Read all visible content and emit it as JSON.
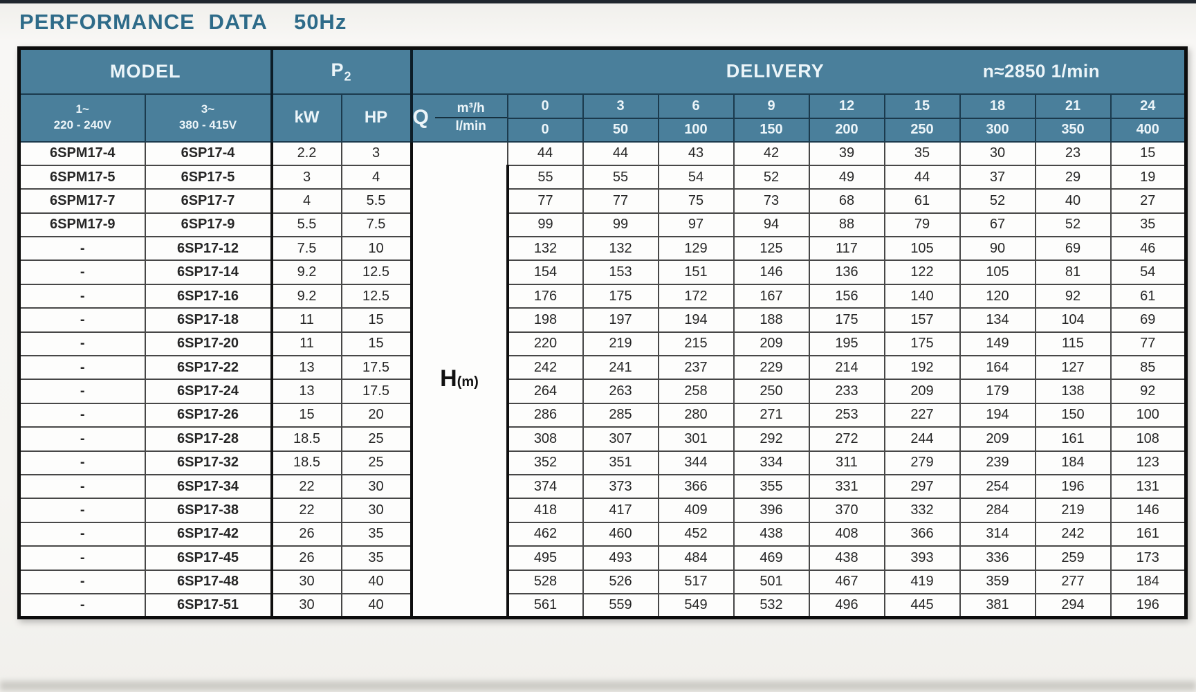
{
  "page": {
    "title": "PERFORMANCE DATA",
    "frequency": "50Hz"
  },
  "colors": {
    "header_teal": "#4a7f9b",
    "title_blue": "#2e6b89",
    "header_text": "#ecf5f9",
    "body_text": "#262626",
    "grid_dark": "#1b3a4d"
  },
  "table": {
    "headers": {
      "model": "MODEL",
      "p2": {
        "base": "P",
        "sub": "2"
      },
      "delivery": "DELIVERY",
      "speed": "n≈2850 1/min",
      "phase1": {
        "line1": "1~",
        "line2": "220 - 240V"
      },
      "phase3": {
        "line1": "3~",
        "line2": "380 - 415V"
      },
      "kw": "kW",
      "hp": "HP",
      "q": "Q",
      "q_unit_top": "m³/h",
      "q_unit_bottom": "l/min",
      "flow_m3h": [
        "0",
        "3",
        "6",
        "9",
        "12",
        "15",
        "18",
        "21",
        "24"
      ],
      "flow_lmin": [
        "0",
        "50",
        "100",
        "150",
        "200",
        "250",
        "300",
        "350",
        "400"
      ]
    },
    "h_label": "H",
    "h_unit": "(m)",
    "rows": [
      {
        "model1": "6SPM17-4",
        "model3": "6SP17-4",
        "kw": "2.2",
        "hp": "3",
        "h": [
          "44",
          "44",
          "43",
          "42",
          "39",
          "35",
          "30",
          "23",
          "15"
        ]
      },
      {
        "model1": "6SPM17-5",
        "model3": "6SP17-5",
        "kw": "3",
        "hp": "4",
        "h": [
          "55",
          "55",
          "54",
          "52",
          "49",
          "44",
          "37",
          "29",
          "19"
        ]
      },
      {
        "model1": "6SPM17-7",
        "model3": "6SP17-7",
        "kw": "4",
        "hp": "5.5",
        "h": [
          "77",
          "77",
          "75",
          "73",
          "68",
          "61",
          "52",
          "40",
          "27"
        ]
      },
      {
        "model1": "6SPM17-9",
        "model3": "6SP17-9",
        "kw": "5.5",
        "hp": "7.5",
        "h": [
          "99",
          "99",
          "97",
          "94",
          "88",
          "79",
          "67",
          "52",
          "35"
        ]
      },
      {
        "model1": "-",
        "model3": "6SP17-12",
        "kw": "7.5",
        "hp": "10",
        "h": [
          "132",
          "132",
          "129",
          "125",
          "117",
          "105",
          "90",
          "69",
          "46"
        ]
      },
      {
        "model1": "-",
        "model3": "6SP17-14",
        "kw": "9.2",
        "hp": "12.5",
        "h": [
          "154",
          "153",
          "151",
          "146",
          "136",
          "122",
          "105",
          "81",
          "54"
        ]
      },
      {
        "model1": "-",
        "model3": "6SP17-16",
        "kw": "9.2",
        "hp": "12.5",
        "h": [
          "176",
          "175",
          "172",
          "167",
          "156",
          "140",
          "120",
          "92",
          "61"
        ]
      },
      {
        "model1": "-",
        "model3": "6SP17-18",
        "kw": "11",
        "hp": "15",
        "h": [
          "198",
          "197",
          "194",
          "188",
          "175",
          "157",
          "134",
          "104",
          "69"
        ]
      },
      {
        "model1": "-",
        "model3": "6SP17-20",
        "kw": "11",
        "hp": "15",
        "h": [
          "220",
          "219",
          "215",
          "209",
          "195",
          "175",
          "149",
          "115",
          "77"
        ]
      },
      {
        "model1": "-",
        "model3": "6SP17-22",
        "kw": "13",
        "hp": "17.5",
        "h": [
          "242",
          "241",
          "237",
          "229",
          "214",
          "192",
          "164",
          "127",
          "85"
        ]
      },
      {
        "model1": "-",
        "model3": "6SP17-24",
        "kw": "13",
        "hp": "17.5",
        "h": [
          "264",
          "263",
          "258",
          "250",
          "233",
          "209",
          "179",
          "138",
          "92"
        ]
      },
      {
        "model1": "-",
        "model3": "6SP17-26",
        "kw": "15",
        "hp": "20",
        "h": [
          "286",
          "285",
          "280",
          "271",
          "253",
          "227",
          "194",
          "150",
          "100"
        ]
      },
      {
        "model1": "-",
        "model3": "6SP17-28",
        "kw": "18.5",
        "hp": "25",
        "h": [
          "308",
          "307",
          "301",
          "292",
          "272",
          "244",
          "209",
          "161",
          "108"
        ]
      },
      {
        "model1": "-",
        "model3": "6SP17-32",
        "kw": "18.5",
        "hp": "25",
        "h": [
          "352",
          "351",
          "344",
          "334",
          "311",
          "279",
          "239",
          "184",
          "123"
        ]
      },
      {
        "model1": "-",
        "model3": "6SP17-34",
        "kw": "22",
        "hp": "30",
        "h": [
          "374",
          "373",
          "366",
          "355",
          "331",
          "297",
          "254",
          "196",
          "131"
        ]
      },
      {
        "model1": "-",
        "model3": "6SP17-38",
        "kw": "22",
        "hp": "30",
        "h": [
          "418",
          "417",
          "409",
          "396",
          "370",
          "332",
          "284",
          "219",
          "146"
        ]
      },
      {
        "model1": "-",
        "model3": "6SP17-42",
        "kw": "26",
        "hp": "35",
        "h": [
          "462",
          "460",
          "452",
          "438",
          "408",
          "366",
          "314",
          "242",
          "161"
        ]
      },
      {
        "model1": "-",
        "model3": "6SP17-45",
        "kw": "26",
        "hp": "35",
        "h": [
          "495",
          "493",
          "484",
          "469",
          "438",
          "393",
          "336",
          "259",
          "173"
        ]
      },
      {
        "model1": "-",
        "model3": "6SP17-48",
        "kw": "30",
        "hp": "40",
        "h": [
          "528",
          "526",
          "517",
          "501",
          "467",
          "419",
          "359",
          "277",
          "184"
        ]
      },
      {
        "model1": "-",
        "model3": "6SP17-51",
        "kw": "30",
        "hp": "40",
        "h": [
          "561",
          "559",
          "549",
          "532",
          "496",
          "445",
          "381",
          "294",
          "196"
        ]
      }
    ]
  }
}
